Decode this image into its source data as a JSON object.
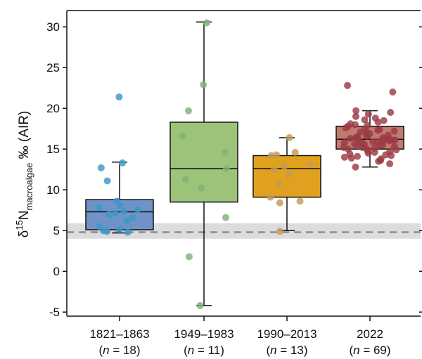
{
  "chart_data": {
    "type": "box",
    "ylabel": {
      "prefix": "δ",
      "superscript": "15",
      "main": "N",
      "subscript": "macroalgae",
      "suffix": " ‰ (AIR)"
    },
    "ylim": [
      -5.5,
      32
    ],
    "yticks": [
      -5,
      0,
      5,
      10,
      15,
      20,
      25,
      30
    ],
    "reference_line": {
      "value": 4.8,
      "band": [
        4.0,
        5.9
      ],
      "style": "dashed"
    },
    "categories": [
      {
        "label": "1821–1863",
        "n_prefix": "(",
        "n_symbol": "n",
        "n_text": " = 18)"
      },
      {
        "label": "1949–1983",
        "n_prefix": "(",
        "n_symbol": "n",
        "n_text": " = 11)"
      },
      {
        "label": "1990–2013",
        "n_prefix": "(",
        "n_symbol": "n",
        "n_text": " = 13)"
      },
      {
        "label": "2022",
        "n_prefix": "(",
        "n_symbol": "n",
        "n_text": " = 69)"
      }
    ],
    "boxes": [
      {
        "color": "#6f93c6",
        "point_color": "#3a98c7",
        "whisker_low": 4.7,
        "q1": 5.1,
        "median": 7.3,
        "q3": 8.8,
        "whisker_high": 13.4,
        "points": [
          21.4,
          13.3,
          12.7,
          11.1,
          8.6,
          8.1,
          7.8,
          7.6,
          7.4,
          7.1,
          7.0,
          6.6,
          6.2,
          5.5,
          5.1,
          4.9,
          4.8,
          5.0
        ]
      },
      {
        "color": "#9dc27a",
        "point_color": "#7fb27a",
        "whisker_low": -4.2,
        "q1": 8.5,
        "median": 12.6,
        "q3": 18.3,
        "whisker_high": 30.6,
        "points": [
          30.5,
          22.9,
          19.7,
          16.6,
          14.6,
          12.6,
          11.3,
          10.2,
          6.6,
          1.8,
          -4.2
        ]
      },
      {
        "color": "#e0a21e",
        "point_color": "#c49a55",
        "whisker_low": 5.0,
        "q1": 9.1,
        "median": 12.6,
        "q3": 14.2,
        "whisker_high": 16.4,
        "points": [
          16.4,
          14.6,
          14.3,
          14.2,
          13.1,
          12.9,
          12.5,
          11.9,
          10.8,
          9.1,
          8.6,
          8.4,
          4.9
        ]
      },
      {
        "color": "#c07a6e",
        "point_color": "#9b3b45",
        "whisker_low": 12.8,
        "q1": 15.0,
        "median": 16.2,
        "q3": 17.8,
        "whisker_high": 19.7,
        "points": [
          22.8,
          22.0,
          19.7,
          19.5,
          19.3,
          19.0,
          18.8,
          18.6,
          18.5,
          18.3,
          18.1,
          18.0,
          17.9,
          17.8,
          17.6,
          17.5,
          17.4,
          17.3,
          17.2,
          17.1,
          17.0,
          16.9,
          16.8,
          16.7,
          16.6,
          16.6,
          16.5,
          16.4,
          16.4,
          16.3,
          16.3,
          16.2,
          16.2,
          16.1,
          16.1,
          16.0,
          16.0,
          15.9,
          15.9,
          15.8,
          15.8,
          15.7,
          15.6,
          15.6,
          15.5,
          15.5,
          15.4,
          15.3,
          15.2,
          15.2,
          15.1,
          15.0,
          15.0,
          14.9,
          14.8,
          14.7,
          14.6,
          14.5,
          14.4,
          14.3,
          14.2,
          14.1,
          14.0,
          13.9,
          13.8,
          13.6,
          13.5,
          13.2,
          12.8
        ]
      }
    ]
  }
}
